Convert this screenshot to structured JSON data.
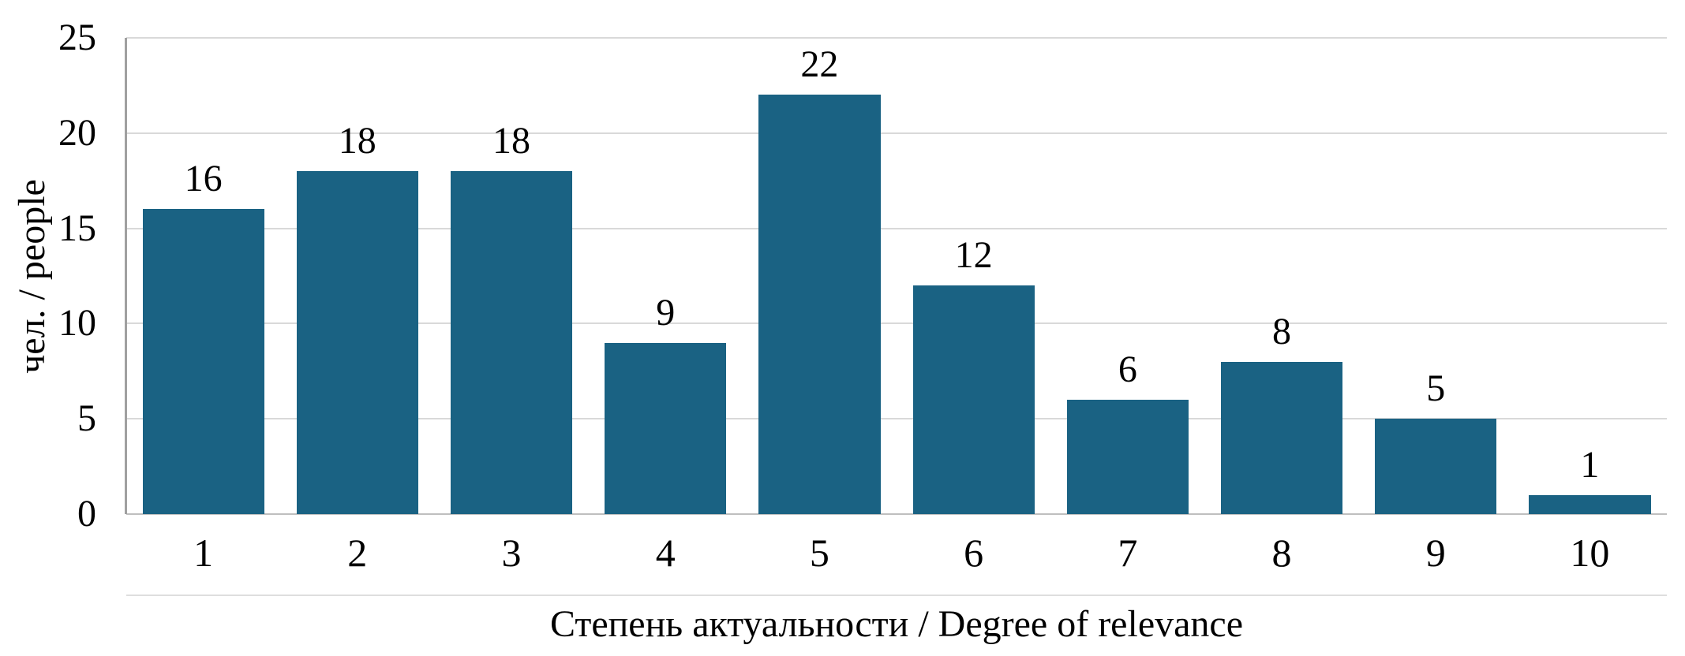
{
  "chart_data": {
    "type": "bar",
    "categories": [
      "1",
      "2",
      "3",
      "4",
      "5",
      "6",
      "7",
      "8",
      "9",
      "10"
    ],
    "values": [
      16,
      18,
      18,
      9,
      22,
      12,
      6,
      8,
      5,
      1
    ],
    "title": "",
    "xlabel": "Степень актуальности / Degree of relevance",
    "ylabel": "чел. / people",
    "ylim": [
      0,
      25
    ],
    "ytick_step": 5,
    "yticks": [
      0,
      5,
      10,
      15,
      20,
      25
    ],
    "bar_color": "#1a6283",
    "gridline_color": "#d9d9d9",
    "axis_line_color": "#a0a0a0",
    "background_color": "#ffffff",
    "grid": "horizontal",
    "legend": "none",
    "value_labels": "above-bars"
  }
}
